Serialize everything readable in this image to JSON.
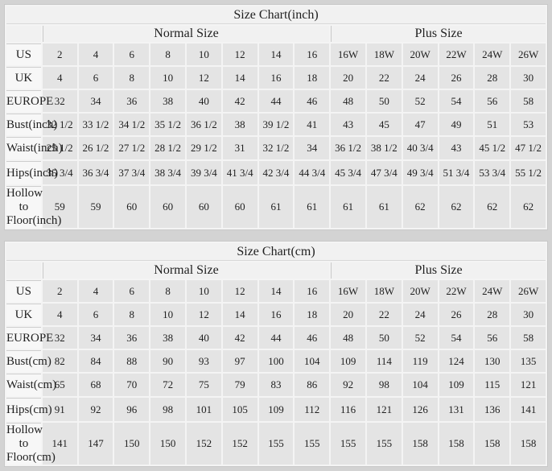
{
  "colors": {
    "page_background": "#d3d3d3",
    "table_background": "#f4f4f4",
    "header_cell_background": "#f1f1f1",
    "label_cell_background": "#f7f7f7",
    "data_cell_background": "#e4e4e4",
    "grid_line": "#cdcdcd",
    "text": "#1f1f1f"
  },
  "chart_data": [
    {
      "type": "table",
      "title": "Size Chart(inch)",
      "group_headers": [
        "Normal Size",
        "Plus Size"
      ],
      "normal_size_columns": 8,
      "plus_size_columns": 6,
      "rows": [
        {
          "label": "US",
          "values": [
            "2",
            "4",
            "6",
            "8",
            "10",
            "12",
            "14",
            "16",
            "16W",
            "18W",
            "20W",
            "22W",
            "24W",
            "26W"
          ]
        },
        {
          "label": "UK",
          "values": [
            "4",
            "6",
            "8",
            "10",
            "12",
            "14",
            "16",
            "18",
            "20",
            "22",
            "24",
            "26",
            "28",
            "30"
          ]
        },
        {
          "label": "EUROPE",
          "values": [
            "32",
            "34",
            "36",
            "38",
            "40",
            "42",
            "44",
            "46",
            "48",
            "50",
            "52",
            "54",
            "56",
            "58"
          ]
        },
        {
          "label": "Bust(inch)",
          "values": [
            "32 1/2",
            "33 1/2",
            "34 1/2",
            "35 1/2",
            "36 1/2",
            "38",
            "39 1/2",
            "41",
            "43",
            "45",
            "47",
            "49",
            "51",
            "53"
          ]
        },
        {
          "label": "Waist(inch)",
          "values": [
            "25 1/2",
            "26 1/2",
            "27 1/2",
            "28 1/2",
            "29 1/2",
            "31",
            "32 1/2",
            "34",
            "36 1/2",
            "38 1/2",
            "40 3/4",
            "43",
            "45 1/2",
            "47 1/2"
          ]
        },
        {
          "label": "Hips(inch)",
          "values": [
            "35 3/4",
            "36 3/4",
            "37 3/4",
            "38 3/4",
            "39 3/4",
            "41 3/4",
            "42 3/4",
            "44 3/4",
            "45 3/4",
            "47 3/4",
            "49 3/4",
            "51 3/4",
            "53 3/4",
            "55 1/2"
          ]
        },
        {
          "label": "Hollow to Floor(inch)",
          "values": [
            "59",
            "59",
            "60",
            "60",
            "60",
            "60",
            "61",
            "61",
            "61",
            "61",
            "62",
            "62",
            "62",
            "62"
          ]
        }
      ]
    },
    {
      "type": "table",
      "title": "Size Chart(cm)",
      "group_headers": [
        "Normal Size",
        "Plus Size"
      ],
      "normal_size_columns": 8,
      "plus_size_columns": 6,
      "rows": [
        {
          "label": "US",
          "values": [
            "2",
            "4",
            "6",
            "8",
            "10",
            "12",
            "14",
            "16",
            "16W",
            "18W",
            "20W",
            "22W",
            "24W",
            "26W"
          ]
        },
        {
          "label": "UK",
          "values": [
            "4",
            "6",
            "8",
            "10",
            "12",
            "14",
            "16",
            "18",
            "20",
            "22",
            "24",
            "26",
            "28",
            "30"
          ]
        },
        {
          "label": "EUROPE",
          "values": [
            "32",
            "34",
            "36",
            "38",
            "40",
            "42",
            "44",
            "46",
            "48",
            "50",
            "52",
            "54",
            "56",
            "58"
          ]
        },
        {
          "label": "Bust(cm)",
          "values": [
            "82",
            "84",
            "88",
            "90",
            "93",
            "97",
            "100",
            "104",
            "109",
            "114",
            "119",
            "124",
            "130",
            "135"
          ]
        },
        {
          "label": "Waist(cm)",
          "values": [
            "65",
            "68",
            "70",
            "72",
            "75",
            "79",
            "83",
            "86",
            "92",
            "98",
            "104",
            "109",
            "115",
            "121"
          ]
        },
        {
          "label": "Hips(cm)",
          "values": [
            "91",
            "92",
            "96",
            "98",
            "101",
            "105",
            "109",
            "112",
            "116",
            "121",
            "126",
            "131",
            "136",
            "141"
          ]
        },
        {
          "label": "Hollow to Floor(cm)",
          "values": [
            "141",
            "147",
            "150",
            "150",
            "152",
            "152",
            "155",
            "155",
            "155",
            "155",
            "158",
            "158",
            "158",
            "158"
          ]
        }
      ]
    }
  ]
}
